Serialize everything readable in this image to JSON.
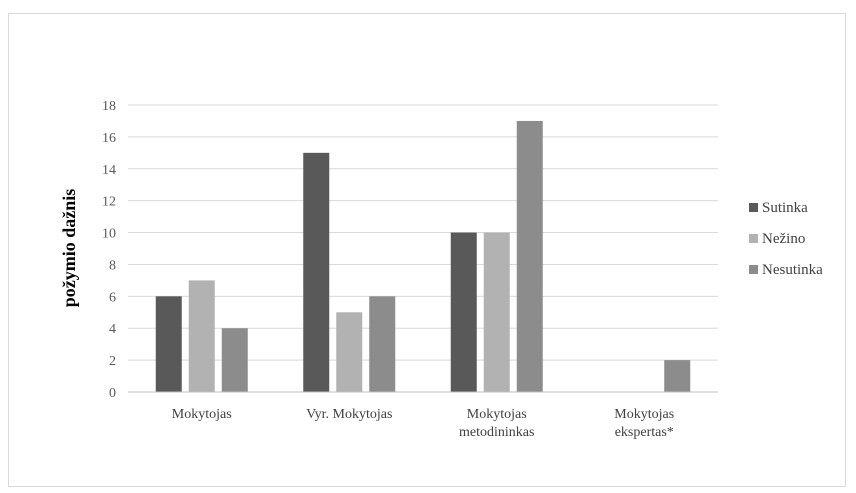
{
  "chart_data": {
    "type": "bar",
    "title": "",
    "xlabel": "",
    "ylabel": "požymio dažnis",
    "ylim": [
      0,
      18
    ],
    "ytick_step": 2,
    "grid": true,
    "legend_position": "right",
    "categories": [
      [
        "Mokytojas"
      ],
      [
        "Vyr. Mokytojas"
      ],
      [
        "Mokytojas",
        "metodininkas"
      ],
      [
        "Mokytojas",
        "ekspertas*"
      ]
    ],
    "series": [
      {
        "name": "Sutinka",
        "color": "#595959",
        "values": [
          6,
          15,
          10,
          0
        ]
      },
      {
        "name": "Nežino",
        "color": "#b2b2b2",
        "values": [
          7,
          5,
          10,
          0
        ]
      },
      {
        "name": "Nesutinka",
        "color": "#8c8c8c",
        "values": [
          4,
          6,
          17,
          2
        ]
      }
    ]
  }
}
